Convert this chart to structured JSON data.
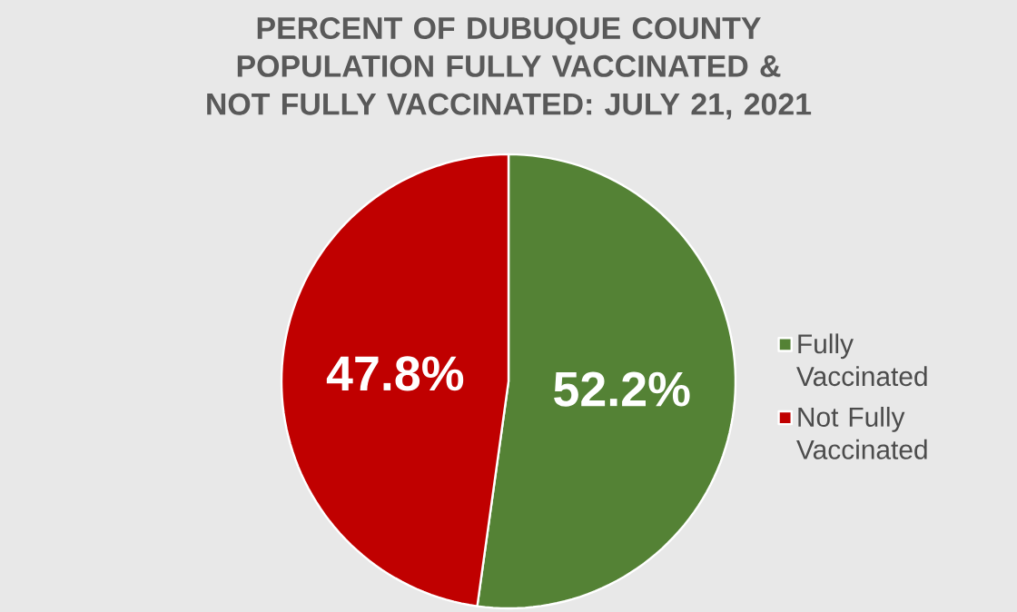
{
  "chart_data": {
    "type": "pie",
    "title": "PERCENT OF DUBUQUE COUNTY POPULATION FULLY VACCINATED & NOT FULLY VACCINATED: JULY 21, 2021",
    "categories": [
      "Fully Vaccinated",
      "Not Fully Vaccinated"
    ],
    "values": [
      52.2,
      47.8
    ],
    "colors": [
      "#548235",
      "#c00000"
    ],
    "value_labels": [
      "52.2%",
      "47.8%"
    ],
    "legend": "right"
  }
}
